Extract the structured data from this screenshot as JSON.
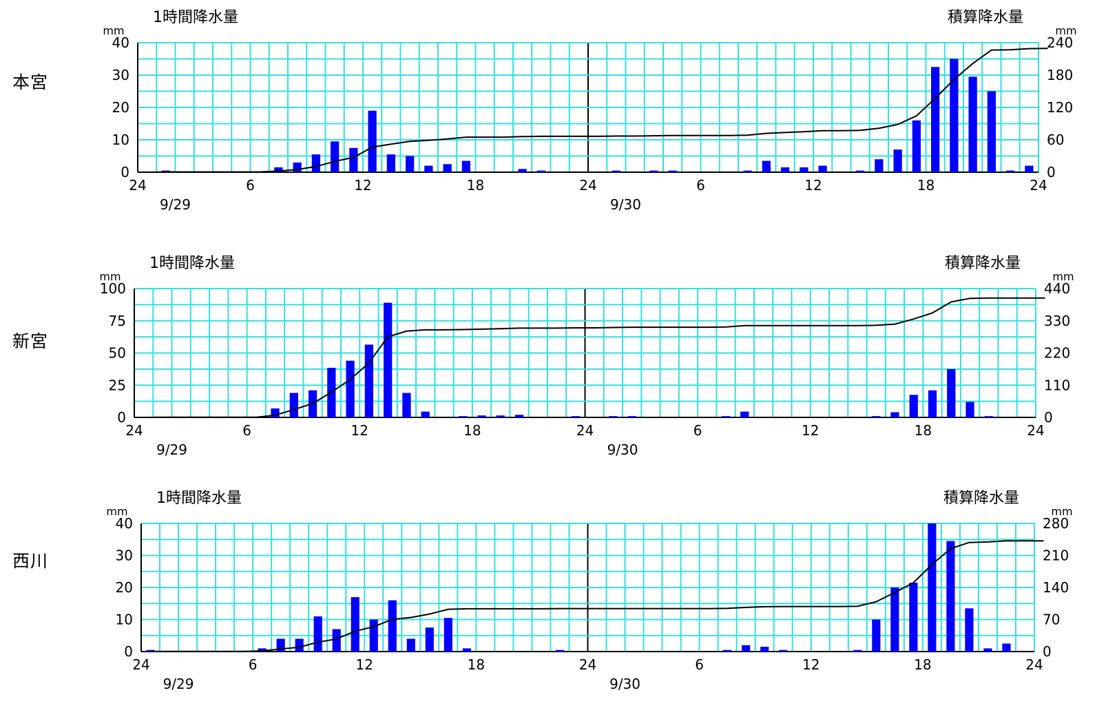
{
  "chart_data": [
    {
      "type": "bar",
      "station": "本宮",
      "left_title": "1時間降水量",
      "right_title": "積算降水量",
      "left_unit": "mm",
      "right_unit": "mm",
      "hour_ticks": [
        "24",
        "6",
        "12",
        "18",
        "24",
        "6",
        "12",
        "18",
        "24"
      ],
      "date_labels": [
        "9/29",
        "9/30"
      ],
      "left_ylim": [
        0,
        40
      ],
      "left_yticks": [
        "0",
        "10",
        "20",
        "30",
        "40"
      ],
      "right_ylim": [
        0,
        240
      ],
      "right_yticks": [
        "0",
        "60",
        "120",
        "180",
        "240"
      ],
      "series": [
        {
          "name": "1時間降水量",
          "type": "bar",
          "color": "#0000ff",
          "values": [
            0,
            0.5,
            0,
            0,
            0,
            0,
            0,
            1.5,
            3,
            5.5,
            9.5,
            7.5,
            19,
            5.5,
            5,
            2,
            2.5,
            3.5,
            0,
            0,
            1,
            0.5,
            0,
            0,
            0,
            0.5,
            0,
            0.5,
            0.5,
            0,
            0,
            0,
            0.5,
            3.5,
            1.5,
            1.5,
            2,
            0,
            0.5,
            4,
            7,
            16,
            32.5,
            35,
            29.5,
            25,
            0.5,
            2,
            0.5
          ]
        },
        {
          "name": "積算降水量",
          "type": "line",
          "color": "#000000",
          "values": [
            0,
            0.5,
            0.5,
            0.5,
            0.5,
            0.5,
            0.5,
            2,
            5,
            10.5,
            20,
            27.5,
            46.5,
            52,
            57,
            59,
            61.5,
            65,
            65,
            65,
            66,
            66.5,
            66.5,
            66.5,
            66.5,
            67,
            67,
            67.5,
            68,
            68,
            68,
            68,
            68.5,
            72,
            73.5,
            75,
            77,
            77,
            77.5,
            81.5,
            88.5,
            104.5,
            137,
            172,
            201.5,
            226.5,
            227,
            229,
            229.5
          ]
        }
      ]
    },
    {
      "type": "bar",
      "station": "新宮",
      "left_title": "1時間降水量",
      "right_title": "積算降水量",
      "left_unit": "mm",
      "right_unit": "mm",
      "hour_ticks": [
        "24",
        "6",
        "12",
        "18",
        "24",
        "6",
        "12",
        "18",
        "24"
      ],
      "date_labels": [
        "9/29",
        "9/30"
      ],
      "left_ylim": [
        0,
        100
      ],
      "left_yticks": [
        "0",
        "25",
        "50",
        "75",
        "100"
      ],
      "right_ylim": [
        0,
        440
      ],
      "right_yticks": [
        "0",
        "110",
        "220",
        "330",
        "440"
      ],
      "series": [
        {
          "name": "1時間降水量",
          "type": "bar",
          "color": "#0000ff",
          "values": [
            0,
            0.5,
            0,
            0,
            0,
            0,
            0,
            7,
            19,
            21,
            38.5,
            44,
            56.5,
            89,
            19,
            4.5,
            0,
            1,
            1.5,
            1.5,
            2,
            0,
            0,
            1,
            0,
            1,
            1,
            0,
            0,
            0,
            0,
            1,
            4.5,
            0,
            0,
            0,
            0,
            0,
            0,
            1,
            4,
            17.5,
            21,
            37.5,
            12,
            1,
            0,
            0,
            0
          ]
        },
        {
          "name": "積算降水量",
          "type": "line",
          "color": "#000000",
          "values": [
            0,
            0.5,
            0.5,
            0.5,
            0.5,
            0.5,
            0.5,
            7.5,
            26.5,
            47.5,
            86,
            130,
            186.5,
            275.5,
            294.5,
            299,
            299,
            300,
            301.5,
            303,
            305,
            305,
            305,
            306,
            306,
            307,
            308,
            308,
            308,
            308,
            308,
            309,
            313.5,
            313.5,
            313.5,
            313.5,
            313.5,
            313.5,
            313.5,
            314.5,
            318.5,
            336,
            357,
            394.5,
            406.5,
            407.5,
            407.5,
            407.5,
            407.5
          ]
        }
      ]
    },
    {
      "type": "bar",
      "station": "西川",
      "left_title": "1時間降水量",
      "right_title": "積算降水量",
      "left_unit": "mm",
      "right_unit": "mm",
      "hour_ticks": [
        "24",
        "6",
        "12",
        "18",
        "24",
        "6",
        "12",
        "18",
        "24"
      ],
      "date_labels": [
        "9/29",
        "9/30"
      ],
      "left_ylim": [
        0,
        40
      ],
      "left_yticks": [
        "0",
        "10",
        "20",
        "30",
        "40"
      ],
      "right_ylim": [
        0,
        280
      ],
      "right_yticks": [
        "0",
        "70",
        "140",
        "210",
        "280"
      ],
      "series": [
        {
          "name": "1時間降水量",
          "type": "bar",
          "color": "#0000ff",
          "values": [
            0.5,
            0,
            0,
            0,
            0,
            0,
            1,
            4,
            4,
            11,
            7,
            17,
            10,
            16,
            4,
            7.5,
            10.5,
            1,
            0,
            0,
            0,
            0,
            0.5,
            0,
            0,
            0,
            0,
            0,
            0,
            0,
            0,
            0.5,
            2,
            1.5,
            0.5,
            0,
            0,
            0,
            0.5,
            10,
            20,
            21.5,
            40,
            34.5,
            13.5,
            1,
            2.5,
            0,
            0
          ]
        },
        {
          "name": "積算降水量",
          "type": "line",
          "color": "#000000",
          "values": [
            0.5,
            0.5,
            0.5,
            0.5,
            0.5,
            0.5,
            1.5,
            5.5,
            9.5,
            20.5,
            27.5,
            44.5,
            54.5,
            70.5,
            74.5,
            82,
            92.5,
            93.5,
            93.5,
            93.5,
            93.5,
            93.5,
            94,
            94,
            94,
            94,
            94,
            94,
            94,
            94,
            94,
            94.5,
            96.5,
            98,
            98.5,
            98.5,
            98.5,
            98.5,
            99,
            109,
            129,
            150.5,
            190.5,
            225,
            238.5,
            239.5,
            242,
            242,
            242
          ]
        }
      ]
    }
  ]
}
